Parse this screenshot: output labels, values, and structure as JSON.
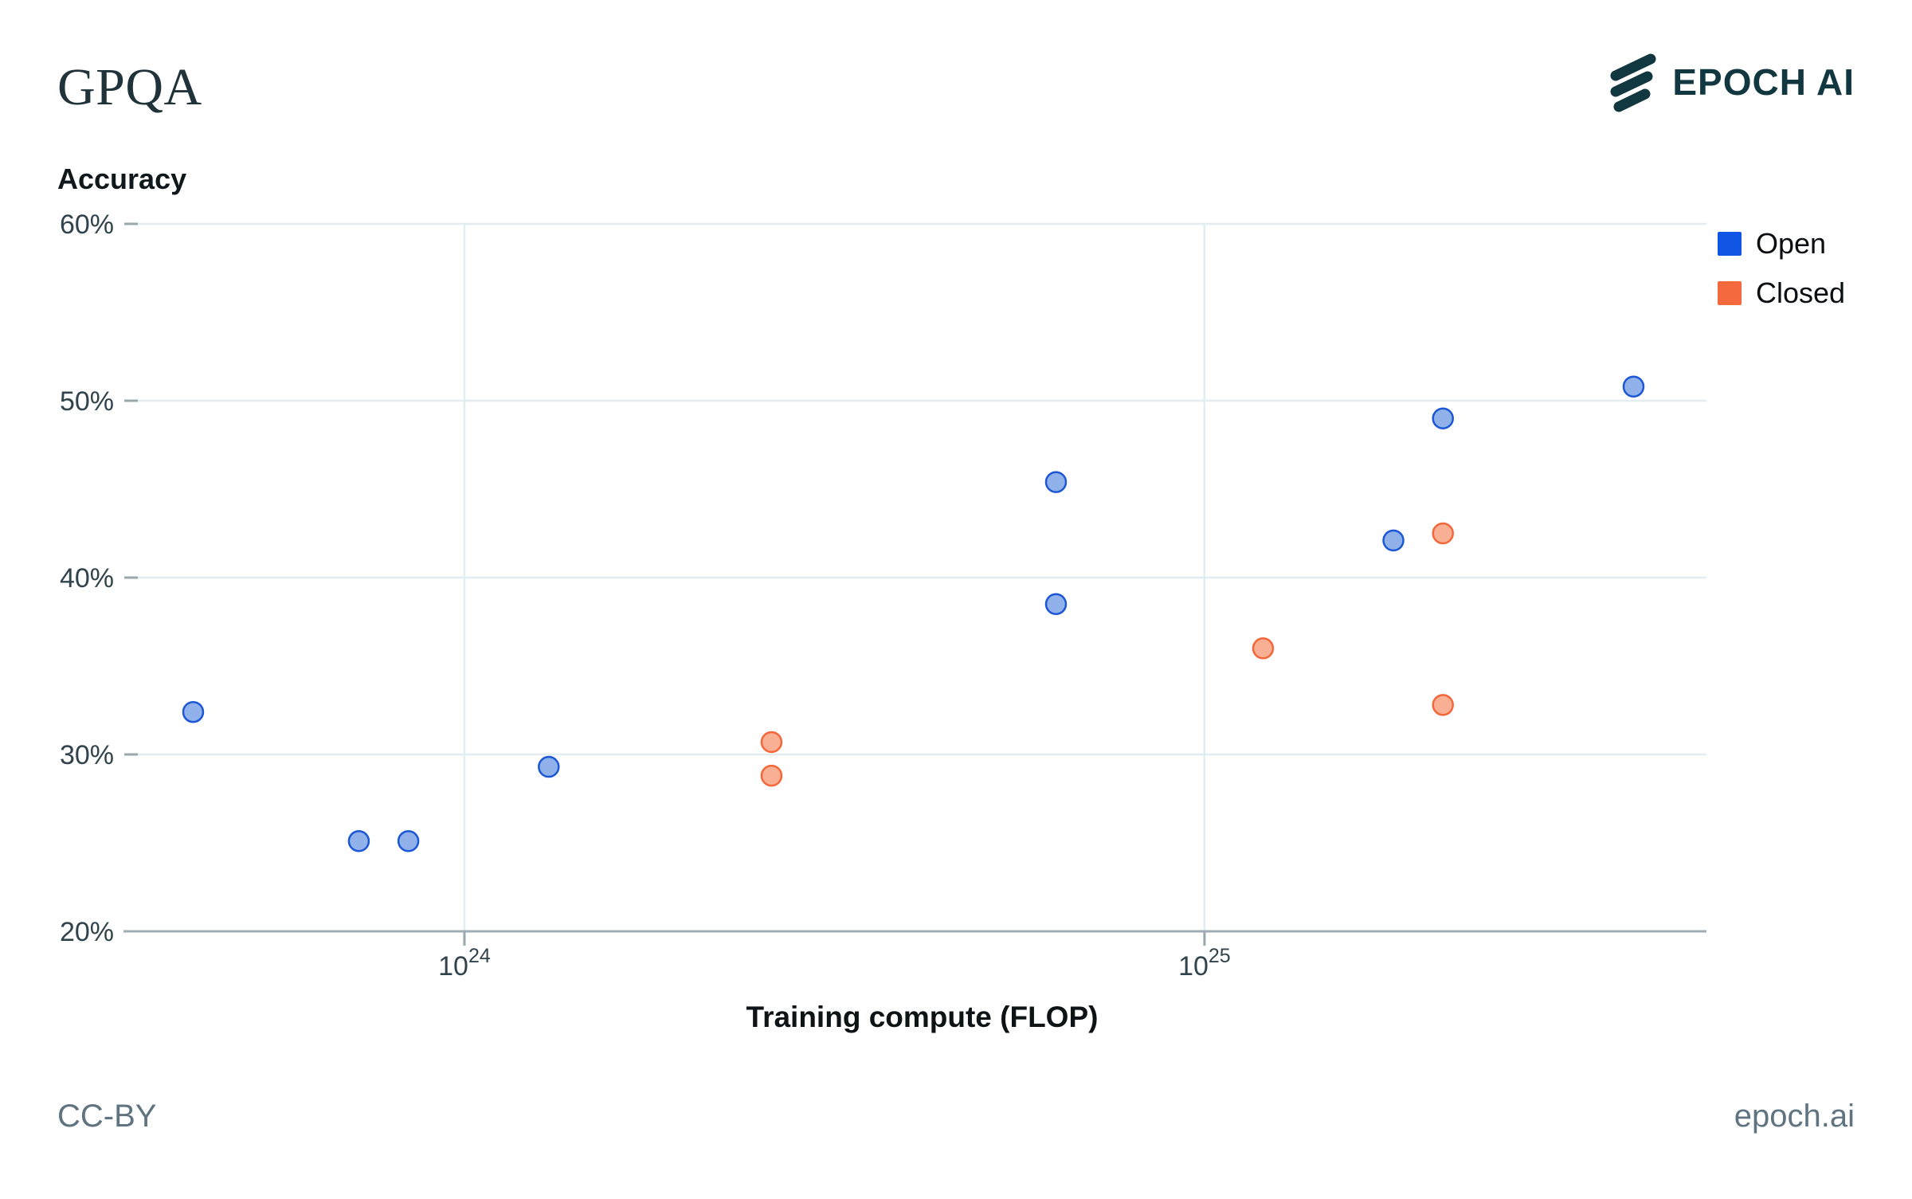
{
  "header": {
    "title": "GPQA",
    "logo_text": "EPOCH AI"
  },
  "chart_data": {
    "type": "scatter",
    "title": "GPQA",
    "xlabel": "Training compute (FLOP)",
    "ylabel": "Accuracy",
    "x_scale": "log",
    "xlim_log10": [
      23.5587,
      25.6783
    ],
    "ylim": [
      20,
      60
    ],
    "y_ticks": [
      20,
      30,
      40,
      50,
      60
    ],
    "y_tick_suffix": "%",
    "x_tick_exponents": [
      24,
      25
    ],
    "x_tick_base": "10",
    "grid": true,
    "legend_position": "outside-top-right",
    "series": [
      {
        "name": "Open",
        "legend_color": "#1155e4",
        "marker_fill": "#90b1e9",
        "marker_stroke": "#1c57d6",
        "points": [
          {
            "compute": 4.3e+23,
            "accuracy": 32.4
          },
          {
            "compute": 7.2e+23,
            "accuracy": 25.1
          },
          {
            "compute": 8.4e+23,
            "accuracy": 25.1
          },
          {
            "compute": 1.3e+24,
            "accuracy": 29.3
          },
          {
            "compute": 6.3e+24,
            "accuracy": 45.4
          },
          {
            "compute": 6.3e+24,
            "accuracy": 38.5
          },
          {
            "compute": 1.8e+25,
            "accuracy": 42.1
          },
          {
            "compute": 2.1e+25,
            "accuracy": 49.0
          },
          {
            "compute": 3.8e+25,
            "accuracy": 50.8
          }
        ]
      },
      {
        "name": "Closed",
        "legend_color": "#f4693e",
        "marker_fill": "#f9af93",
        "marker_stroke": "#f2683a",
        "points": [
          {
            "compute": 2.6e+24,
            "accuracy": 30.7
          },
          {
            "compute": 2.6e+24,
            "accuracy": 28.8
          },
          {
            "compute": 1.2e+25,
            "accuracy": 36.0
          },
          {
            "compute": 2.1e+25,
            "accuracy": 42.5
          },
          {
            "compute": 2.1e+25,
            "accuracy": 32.8
          }
        ]
      }
    ],
    "style": {
      "gridline_color": "#e3edef",
      "axis_color": "#9fadb4",
      "tick_color": "#9aa7ad",
      "tick_label_color": "#31434c",
      "marker_radius": 12.5,
      "marker_stroke_width": 2.5
    }
  },
  "footer": {
    "license": "CC-BY",
    "site": "epoch.ai"
  }
}
